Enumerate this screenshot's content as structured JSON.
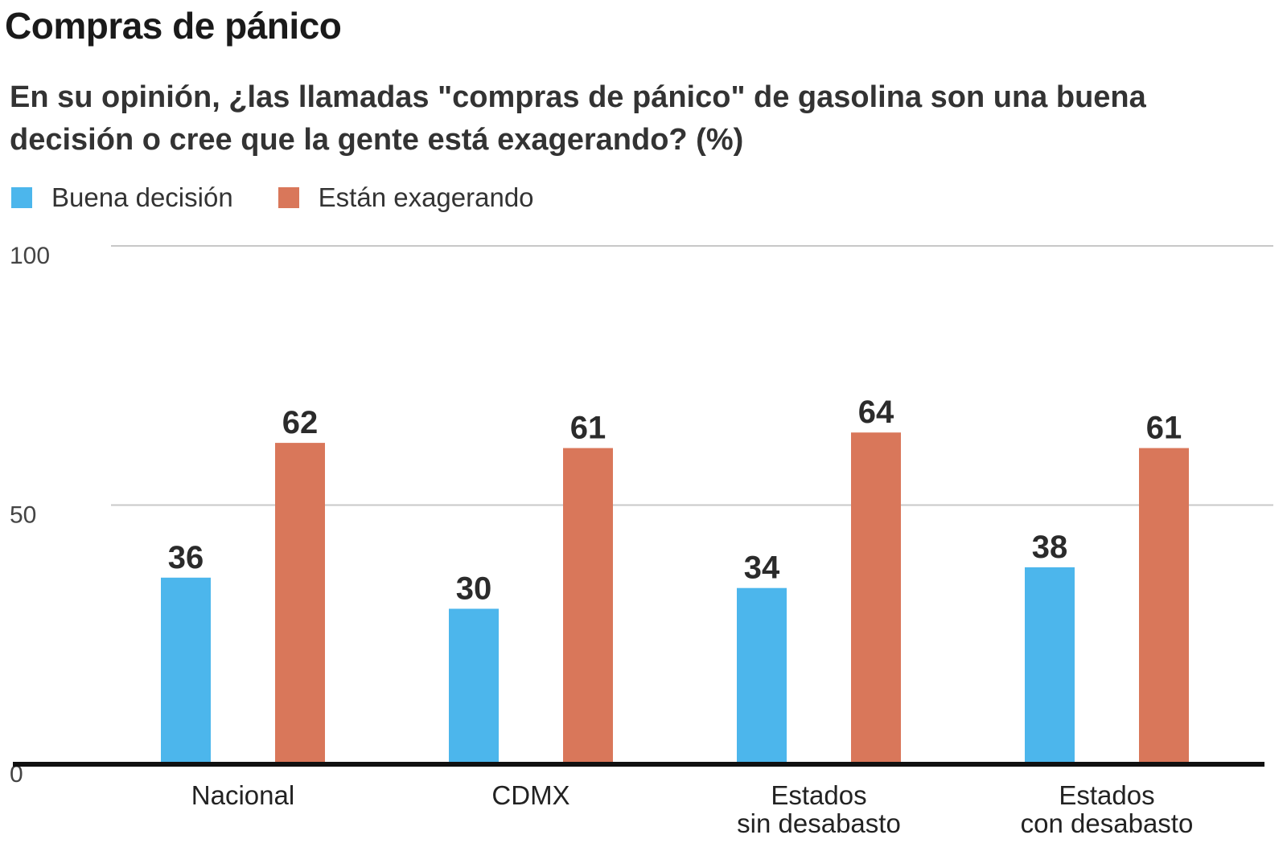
{
  "header": {
    "title": "Compras de pánico",
    "subtitle": "En su opinión, ¿las llamadas \"compras de pánico\" de gasolina son una buena decisión o cree que la gente está exagerando? (%)"
  },
  "legend": [
    {
      "label": "Buena decisión",
      "color": "#4cb6ec"
    },
    {
      "label": "Están exagerando",
      "color": "#d9775a"
    }
  ],
  "chart_data": {
    "type": "bar",
    "categories": [
      "Nacional",
      "CDMX",
      "Estados\nsin desabasto",
      "Estados\ncon desabasto"
    ],
    "series": [
      {
        "name": "Buena decisión",
        "values": [
          36,
          30,
          34,
          38
        ],
        "color": "#4cb6ec"
      },
      {
        "name": "Están exagerando",
        "values": [
          62,
          61,
          64,
          61
        ],
        "color": "#d9775a"
      }
    ],
    "ylim": [
      0,
      100
    ],
    "yticks": [
      0,
      50,
      100
    ],
    "grid": true,
    "legend_position": "top-left",
    "data_labels": true
  }
}
